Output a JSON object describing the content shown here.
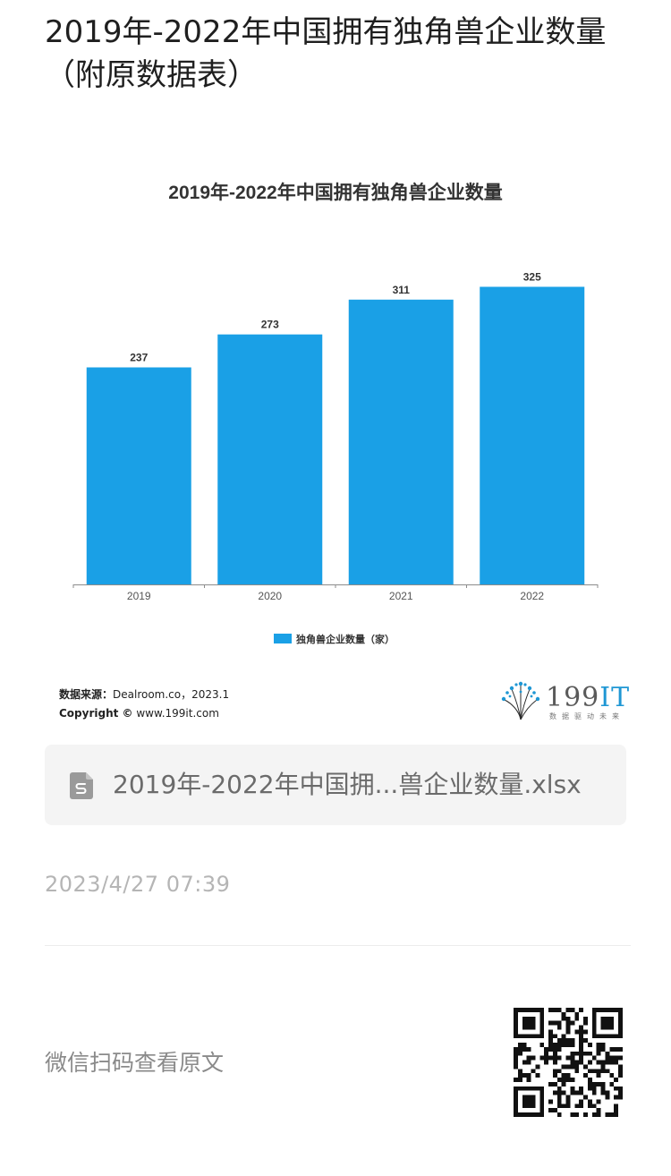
{
  "article": {
    "title_line1": "2019年-2022年中国拥有独角兽企业数量",
    "title_line2": "（附原数据表）"
  },
  "chart_data": {
    "type": "bar",
    "title": "2019年-2022年中国拥有独角兽企业数量",
    "categories": [
      "2019",
      "2020",
      "2021",
      "2022"
    ],
    "series": [
      {
        "name": "独角兽企业数量（家）",
        "values": [
          237,
          273,
          311,
          325
        ],
        "color": "#1aa0e6"
      }
    ],
    "data_labels": [
      "237",
      "273",
      "311",
      "325"
    ],
    "ylim": [
      0,
      345
    ],
    "grid": false,
    "legend_position": "bottom"
  },
  "source": {
    "label": "数据来源：",
    "text": "Dealroom.co，2023.1",
    "copyright_label": "Copyright ©",
    "copyright_text": " www.199it.com"
  },
  "logo": {
    "name_number": "199",
    "name_letters": "IT",
    "slogan": "数据驱动未来",
    "icon": "dandelion-logo-icon"
  },
  "attachment": {
    "icon": "spreadsheet-file-icon",
    "file_name": "2019年-2022年中国拥...兽企业数量.xlsx"
  },
  "meta": {
    "timestamp": "2023/4/27 07:39",
    "scan_hint": "微信扫码查看原文",
    "qr_icon": "qr-code-icon"
  }
}
